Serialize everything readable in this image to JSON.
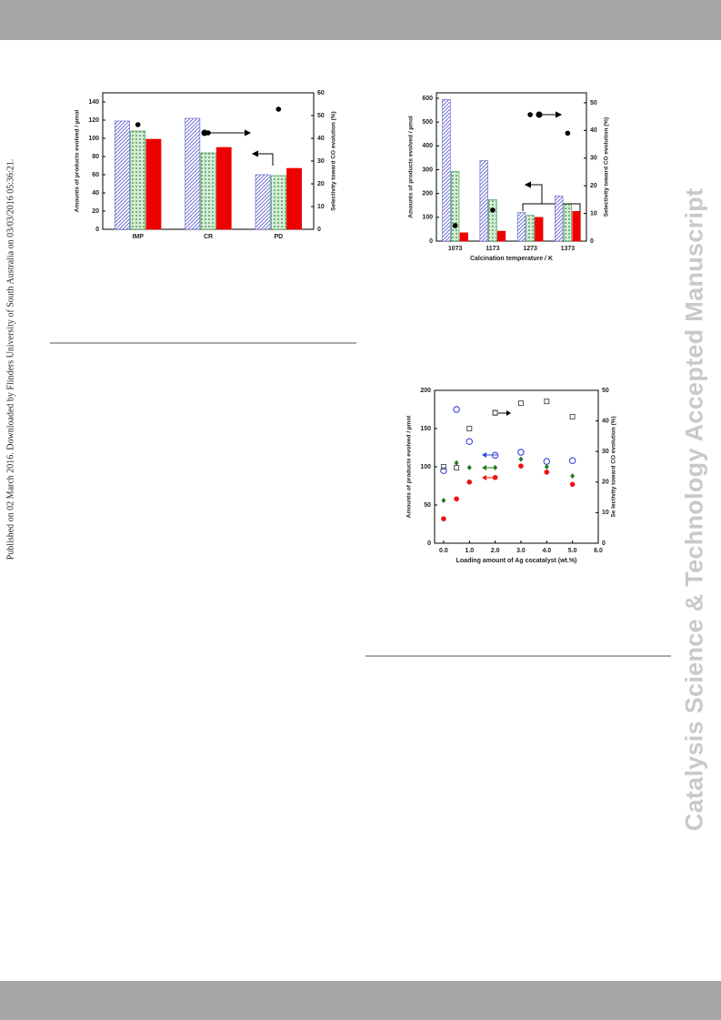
{
  "page": {
    "side_note": "Published on 02 March 2016. Downloaded by Flinders University of South Australia on 03/03/2016 05:36:21.",
    "journal_watermark": "Catalysis Science & Technology Accepted Manuscript"
  },
  "chart_data": [
    {
      "type": "bar",
      "categories": [
        "IMP",
        "CR",
        "PD"
      ],
      "ylabel": "Amounts of products evolved / µmol",
      "y2label": "Selectivity toward CO evolution (%)",
      "ylim": [
        0,
        150
      ],
      "yticks": [
        0,
        20,
        40,
        60,
        80,
        100,
        120,
        140
      ],
      "y2lim": [
        0,
        60
      ],
      "y2ticks": [
        0,
        10,
        20,
        30,
        40,
        50,
        60
      ],
      "series": [
        {
          "color": "#5a5ad0",
          "pattern": "hatch",
          "values": [
            119,
            122,
            60
          ]
        },
        {
          "color": "#2e8b3a",
          "pattern": "dots",
          "values": [
            108,
            84,
            59
          ]
        },
        {
          "color": "#ee0000",
          "pattern": "solid",
          "values": [
            99,
            90,
            67
          ]
        },
        {
          "color": "#000000",
          "marker": "dot",
          "axis": "y2",
          "values": [
            46,
            42.4,
            52.8
          ]
        }
      ]
    },
    {
      "type": "bar",
      "categories": [
        "1073",
        "1173",
        "1273",
        "1373"
      ],
      "xlabel": "Calcination temperature / K",
      "ylabel": "Amounts of products evolved / µmol",
      "y2label": "Selectivity toward CO evolution (%)",
      "ylim": [
        0,
        623
      ],
      "yticks": [
        0,
        100,
        200,
        300,
        400,
        500,
        600
      ],
      "y2lim": [
        0,
        53.6
      ],
      "y2ticks": [
        0,
        10,
        20,
        30,
        40,
        50
      ],
      "series": [
        {
          "color": "#5a5ad0",
          "pattern": "hatch",
          "values": [
            595,
            338,
            120,
            190
          ]
        },
        {
          "color": "#2e8b3a",
          "pattern": "dots",
          "values": [
            292,
            175,
            108,
            155
          ]
        },
        {
          "color": "#ee0000",
          "pattern": "solid",
          "values": [
            35,
            42,
            100,
            125
          ]
        },
        {
          "color": "#000000",
          "marker": "dot",
          "axis": "y2",
          "values": [
            5.6,
            11.2,
            45.7,
            39
          ]
        }
      ]
    },
    {
      "type": "scatter",
      "x": [
        0,
        0.5,
        1,
        2,
        3,
        4,
        5
      ],
      "xlabel": "Loading amount of Ag cocatalyst (wt.%)",
      "ylabel": "Amounts of products evolved / µmol",
      "y2label": "Se lectivity toward CO evolution (%)",
      "xlim": [
        -0.35,
        6
      ],
      "xticks": [
        {
          "value": 0,
          "label": "0.0"
        },
        {
          "value": 1,
          "label": "1.0"
        },
        {
          "value": 2,
          "label": "2.0"
        },
        {
          "value": 3,
          "label": "3.0"
        },
        {
          "value": 4,
          "label": "4.0"
        },
        {
          "value": 5,
          "label": "5.0"
        },
        {
          "value": 6,
          "label": "6.0"
        }
      ],
      "ylim": [
        0,
        200
      ],
      "yticks": [
        0,
        50,
        100,
        150,
        200
      ],
      "y2lim": [
        0,
        50
      ],
      "y2ticks": [
        0,
        10,
        20,
        30,
        40,
        50
      ],
      "series": [
        {
          "color": "#3344dd",
          "marker": "circle",
          "values": [
            95,
            175,
            133,
            115,
            119,
            107,
            108
          ]
        },
        {
          "color": "#1f7a1f",
          "marker": "diamond",
          "values": [
            56,
            105,
            99,
            99,
            110,
            100,
            88
          ]
        },
        {
          "color": "#ee1111",
          "marker": "dot",
          "values": [
            32,
            58,
            80,
            86,
            101,
            93,
            77
          ]
        },
        {
          "color": "#555555",
          "marker": "square",
          "axis": "y2",
          "values": [
            25,
            24.7,
            37.5,
            42.6,
            45.8,
            46.4,
            41.4
          ]
        }
      ]
    }
  ]
}
